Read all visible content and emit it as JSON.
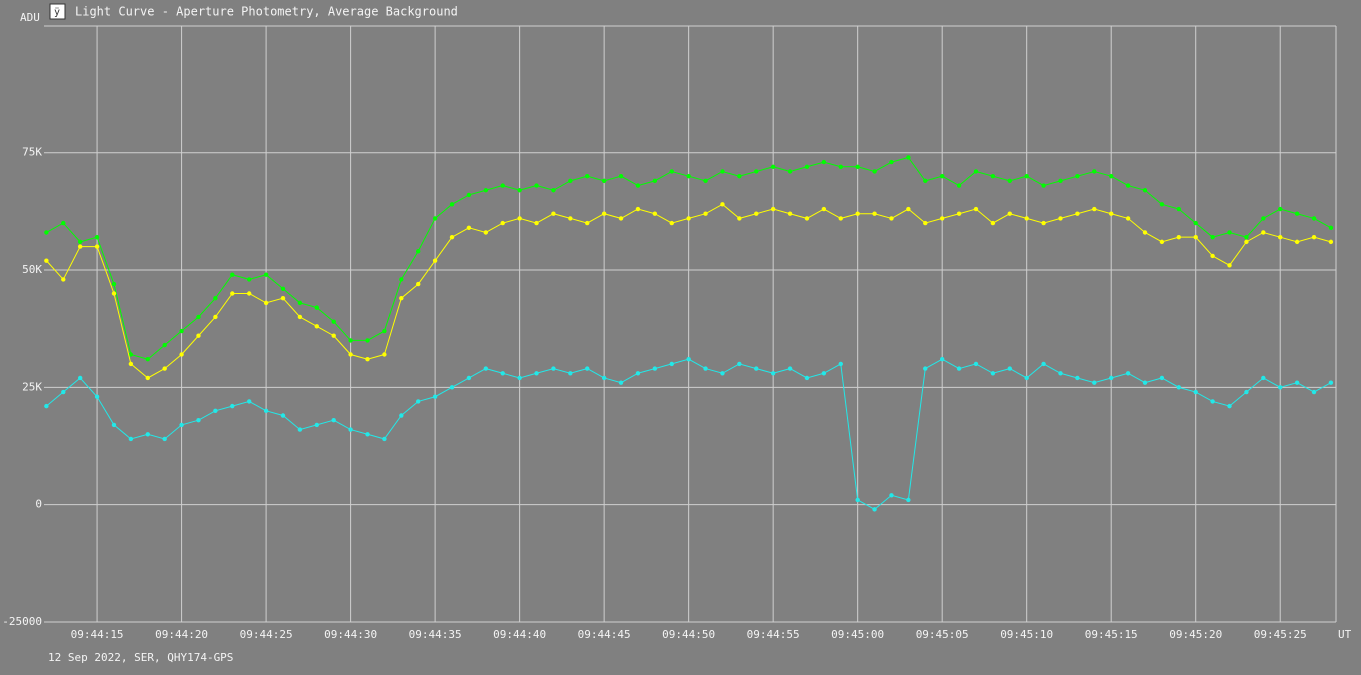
{
  "chart_data": {
    "type": "line",
    "title": "Light Curve - Aperture Photometry, Average Background",
    "y_label": "ADU",
    "x_label": "UT",
    "footer": "12 Sep 2022, SER, QHY174-GPS",
    "x": [
      12,
      13,
      14,
      15,
      16,
      17,
      18,
      19,
      20,
      21,
      22,
      23,
      24,
      25,
      26,
      27,
      28,
      29,
      30,
      31,
      32,
      33,
      34,
      35,
      36,
      37,
      38,
      39,
      40,
      41,
      42,
      43,
      44,
      45,
      46,
      47,
      48,
      49,
      50,
      51,
      52,
      53,
      54,
      55,
      56,
      57,
      58,
      59,
      60,
      61,
      62,
      63,
      64,
      65,
      66,
      67,
      68,
      69,
      70,
      71,
      72,
      73,
      74,
      75,
      76,
      77,
      78,
      79,
      80,
      81,
      82,
      83,
      84,
      85,
      86,
      87,
      88
    ],
    "series": [
      {
        "color": "#00ff00",
        "values": [
          58000,
          60000,
          56000,
          57000,
          47000,
          32000,
          31000,
          34000,
          37000,
          40000,
          44000,
          49000,
          48000,
          49000,
          46000,
          43000,
          42000,
          39000,
          35000,
          35000,
          37000,
          48000,
          54000,
          61000,
          64000,
          66000,
          67000,
          68000,
          67000,
          68000,
          67000,
          69000,
          70000,
          69000,
          70000,
          68000,
          69000,
          71000,
          70000,
          69000,
          71000,
          70000,
          71000,
          72000,
          71000,
          72000,
          73000,
          72000,
          72000,
          71000,
          73000,
          74000,
          69000,
          70000,
          68000,
          71000,
          70000,
          69000,
          70000,
          68000,
          69000,
          70000,
          71000,
          70000,
          68000,
          67000,
          64000,
          63000,
          60000,
          57000,
          58000,
          57000,
          61000,
          63000,
          62000,
          61000,
          59000
        ]
      },
      {
        "color": "#ffff00",
        "values": [
          52000,
          48000,
          55000,
          55000,
          45000,
          30000,
          27000,
          29000,
          32000,
          36000,
          40000,
          45000,
          45000,
          43000,
          44000,
          40000,
          38000,
          36000,
          32000,
          31000,
          32000,
          44000,
          47000,
          52000,
          57000,
          59000,
          58000,
          60000,
          61000,
          60000,
          62000,
          61000,
          60000,
          62000,
          61000,
          63000,
          62000,
          60000,
          61000,
          62000,
          64000,
          61000,
          62000,
          63000,
          62000,
          61000,
          63000,
          61000,
          62000,
          62000,
          61000,
          63000,
          60000,
          61000,
          62000,
          63000,
          60000,
          62000,
          61000,
          60000,
          61000,
          62000,
          63000,
          62000,
          61000,
          58000,
          56000,
          57000,
          57000,
          53000,
          51000,
          56000,
          58000,
          57000,
          56000,
          57000,
          56000
        ]
      },
      {
        "color": "#22e8e8",
        "values": [
          21000,
          24000,
          27000,
          23000,
          17000,
          14000,
          15000,
          14000,
          17000,
          18000,
          20000,
          21000,
          22000,
          20000,
          19000,
          16000,
          17000,
          18000,
          16000,
          15000,
          14000,
          19000,
          22000,
          23000,
          25000,
          27000,
          29000,
          28000,
          27000,
          28000,
          29000,
          28000,
          29000,
          27000,
          26000,
          28000,
          29000,
          30000,
          31000,
          29000,
          28000,
          30000,
          29000,
          28000,
          29000,
          27000,
          28000,
          30000,
          1000,
          -1000,
          2000,
          1000,
          29000,
          31000,
          29000,
          30000,
          28000,
          29000,
          27000,
          30000,
          28000,
          27000,
          26000,
          27000,
          28000,
          26000,
          27000,
          25000,
          24000,
          22000,
          21000,
          24000,
          27000,
          25000,
          26000,
          24000,
          26000
        ]
      }
    ],
    "xlim": [
      11.86,
      88.3
    ],
    "xticks": [
      {
        "value": 15,
        "label": "09:44:15"
      },
      {
        "value": 20,
        "label": "09:44:20"
      },
      {
        "value": 25,
        "label": "09:44:25"
      },
      {
        "value": 30,
        "label": "09:44:30"
      },
      {
        "value": 35,
        "label": "09:44:35"
      },
      {
        "value": 40,
        "label": "09:44:40"
      },
      {
        "value": 45,
        "label": "09:44:45"
      },
      {
        "value": 50,
        "label": "09:44:50"
      },
      {
        "value": 55,
        "label": "09:44:55"
      },
      {
        "value": 60,
        "label": "09:45:00"
      },
      {
        "value": 65,
        "label": "09:45:05"
      },
      {
        "value": 70,
        "label": "09:45:10"
      },
      {
        "value": 75,
        "label": "09:45:15"
      },
      {
        "value": 80,
        "label": "09:45:20"
      },
      {
        "value": 85,
        "label": "09:45:25"
      }
    ],
    "ylim": [
      -25000,
      102000
    ],
    "yticks": [
      -25000,
      0,
      {
        "value": 25000,
        "label": "25K"
      },
      {
        "value": 50000,
        "label": "50K"
      },
      {
        "value": 75000,
        "label": "75K"
      }
    ],
    "grid": true
  }
}
